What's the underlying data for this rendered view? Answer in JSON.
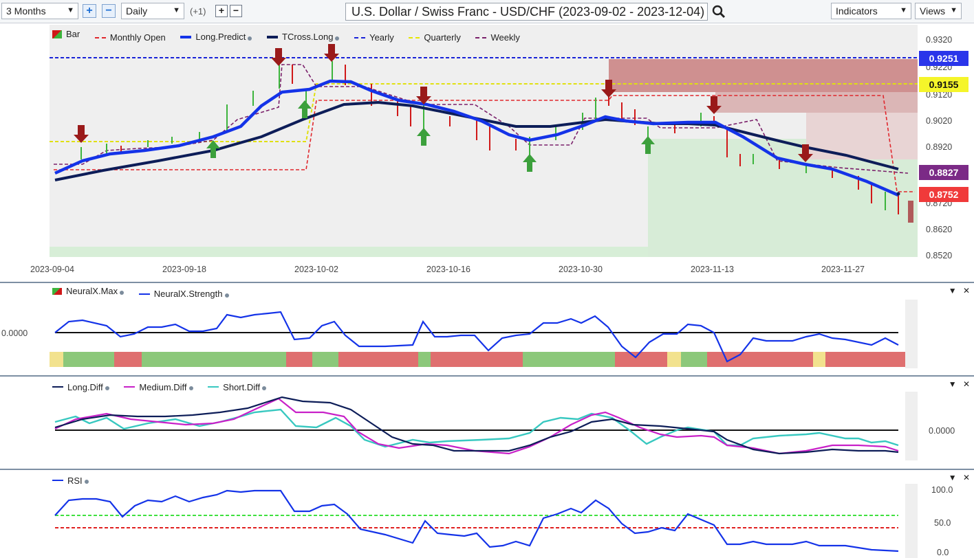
{
  "toolbar": {
    "range_select": "3 Months",
    "interval_select": "Daily",
    "offset_text": "(+1)",
    "title": "U.S. Dollar / Swiss Franc - USD/CHF (2023-09-02 - 2023-12-04)",
    "indicators_select": "Indicators",
    "views_select": "Views",
    "icons": [
      "chevron-down-icon",
      "zoom-in-icon",
      "zoom-out-icon",
      "search-icon"
    ]
  },
  "main_chart": {
    "legend": [
      {
        "label": "Bar",
        "style": "bar-icon"
      },
      {
        "label": "Monthly Open",
        "color": "#e0262c",
        "style": "dashed"
      },
      {
        "label": "Long.Predict",
        "color": "#1433e8",
        "style": "solid-thick"
      },
      {
        "label": "TCross.Long",
        "color": "#0d1d58",
        "style": "solid-thick"
      },
      {
        "label": "Yearly",
        "color": "#1822d8",
        "style": "dashed"
      },
      {
        "label": "Quarterly",
        "color": "#e6e600",
        "style": "dashed"
      },
      {
        "label": "Weekly",
        "color": "#7a1f6a",
        "style": "dashed"
      }
    ],
    "y_ticks": [
      "0.9320",
      "0.9220",
      "0.9120",
      "0.9020",
      "0.8920",
      "0.8720",
      "0.8620",
      "0.8520"
    ],
    "x_ticks": [
      "2023-09-04",
      "2023-09-18",
      "2023-10-02",
      "2023-10-16",
      "2023-10-30",
      "2023-11-13",
      "2023-11-27"
    ],
    "price_tags": [
      {
        "value": "0.9251",
        "bg": "#2a35ea",
        "fg": "#ffffff"
      },
      {
        "value": "0.9155",
        "bg": "#f5f52a",
        "fg": "#111111"
      },
      {
        "value": "0.8827",
        "bg": "#7b2a86",
        "fg": "#ffffff"
      },
      {
        "value": "0.8752",
        "bg": "#f03a3a",
        "fg": "#ffffff"
      }
    ]
  },
  "neuralx_panel": {
    "legend": [
      {
        "label": "NeuralX.Max",
        "style": "bar-icon"
      },
      {
        "label": "NeuralX.Strength",
        "color": "#1433e8"
      }
    ],
    "zero_label": "0.0000"
  },
  "diff_panel": {
    "legend": [
      {
        "label": "Long.Diff",
        "color": "#0d1d58"
      },
      {
        "label": "Medium.Diff",
        "color": "#c820c8"
      },
      {
        "label": "Short.Diff",
        "color": "#38c8c0"
      }
    ],
    "zero_label": "0.0000"
  },
  "rsi_panel": {
    "legend": [
      {
        "label": "RSI",
        "color": "#1433e8"
      }
    ],
    "y_ticks": [
      "100.0",
      "50.0",
      "0.0"
    ]
  },
  "panel_controls": {
    "collapse": "▼",
    "close": "✕"
  }
}
